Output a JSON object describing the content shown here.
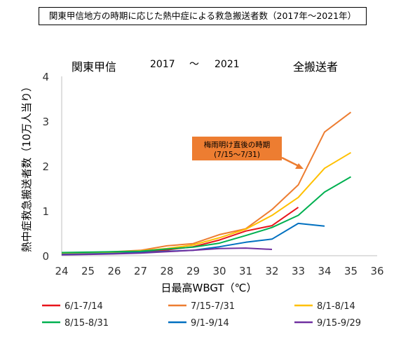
{
  "title": "関東甲信地方の時期に応じた熱中症による救急搬送者数（2017年～2021年）",
  "header": {
    "region": "関東甲信",
    "year_from": "2017",
    "tilde": "～",
    "year_to": "2021",
    "category": "全搬送者"
  },
  "annotation": {
    "line1": "梅雨明け直後の時期",
    "line2": "(7/15～7/31)",
    "fill_color": "#ED7D31"
  },
  "chart_data": {
    "type": "line",
    "title": "関東甲信地方の時期に応じた熱中症による救急搬送者数（2017年～2021年）",
    "xlabel": "日最高WBGT（℃）",
    "ylabel": "熱中症救急搬送者数（10万人当り）",
    "xlim": [
      24,
      36
    ],
    "ylim": [
      0,
      4
    ],
    "x_ticks": [
      24,
      25,
      26,
      27,
      28,
      29,
      30,
      31,
      32,
      33,
      34,
      35,
      36
    ],
    "y_ticks": [
      0,
      1,
      2,
      3,
      4
    ],
    "grid": false,
    "legend_position": "bottom",
    "series": [
      {
        "name": "6/1-7/14",
        "color": "#E8141B",
        "x": [
          24,
          25,
          26,
          27,
          28,
          29,
          30,
          31,
          32,
          33
        ],
        "values": [
          0.03,
          0.04,
          0.06,
          0.08,
          0.13,
          0.2,
          0.35,
          0.55,
          0.67,
          1.08
        ]
      },
      {
        "name": "7/15-7/31",
        "color": "#ED7D31",
        "x": [
          24,
          25,
          26,
          27,
          28,
          29,
          30,
          31,
          32,
          33,
          34,
          35
        ],
        "values": [
          0.05,
          0.07,
          0.09,
          0.12,
          0.22,
          0.27,
          0.47,
          0.6,
          1.03,
          1.58,
          2.76,
          3.2
        ]
      },
      {
        "name": "8/1-8/14",
        "color": "#FFC000",
        "x": [
          24,
          25,
          26,
          27,
          28,
          29,
          30,
          31,
          32,
          33,
          34,
          35
        ],
        "values": [
          0.05,
          0.06,
          0.08,
          0.11,
          0.16,
          0.24,
          0.4,
          0.59,
          0.9,
          1.3,
          1.95,
          2.3
        ]
      },
      {
        "name": "8/15-8/31",
        "color": "#00B050",
        "x": [
          24,
          25,
          26,
          27,
          28,
          29,
          30,
          31,
          32,
          33,
          34,
          35
        ],
        "values": [
          0.07,
          0.08,
          0.09,
          0.1,
          0.15,
          0.19,
          0.28,
          0.45,
          0.63,
          0.9,
          1.42,
          1.76
        ]
      },
      {
        "name": "9/1-9/14",
        "color": "#0070C0",
        "x": [
          24,
          25,
          26,
          27,
          28,
          29,
          30,
          31,
          32,
          33,
          34
        ],
        "values": [
          0.03,
          0.04,
          0.05,
          0.07,
          0.1,
          0.12,
          0.2,
          0.3,
          0.37,
          0.72,
          0.66
        ]
      },
      {
        "name": "9/15-9/29",
        "color": "#7030A0",
        "x": [
          24,
          25,
          26,
          27,
          28,
          29,
          30,
          31,
          32
        ],
        "values": [
          0.02,
          0.03,
          0.04,
          0.06,
          0.09,
          0.12,
          0.16,
          0.17,
          0.14
        ]
      }
    ]
  }
}
